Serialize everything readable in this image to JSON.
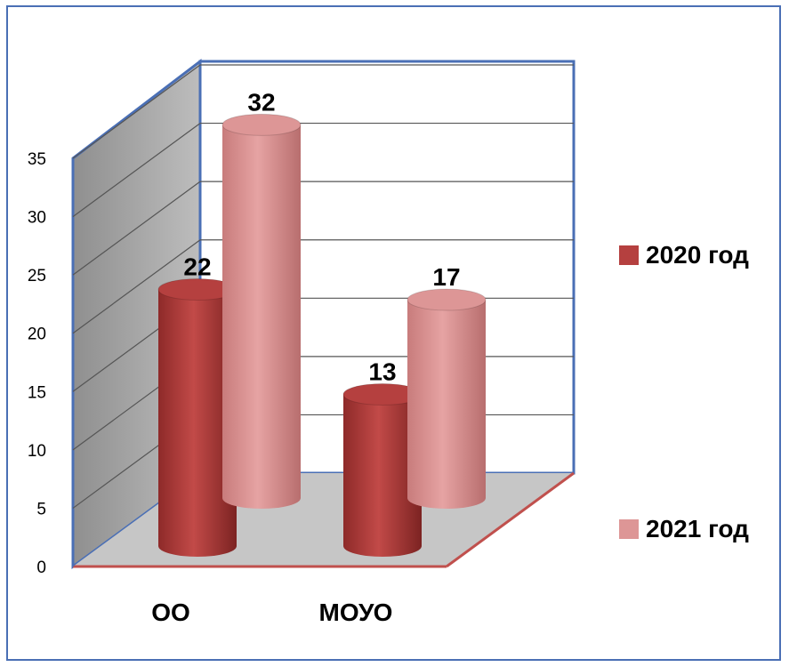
{
  "chart_data": {
    "type": "bar",
    "style": "3d-cylinder",
    "categories": [
      "ОО",
      "МОУО"
    ],
    "series": [
      {
        "name": "2020 год",
        "values": [
          22,
          13
        ],
        "color": "#b5403f"
      },
      {
        "name": "2021 год",
        "values": [
          32,
          17
        ],
        "color": "#dd9696"
      }
    ],
    "yticks": [
      0,
      5,
      10,
      15,
      20,
      25,
      30,
      35
    ],
    "ylim": [
      0,
      35
    ],
    "grid": true,
    "legend": "right"
  }
}
